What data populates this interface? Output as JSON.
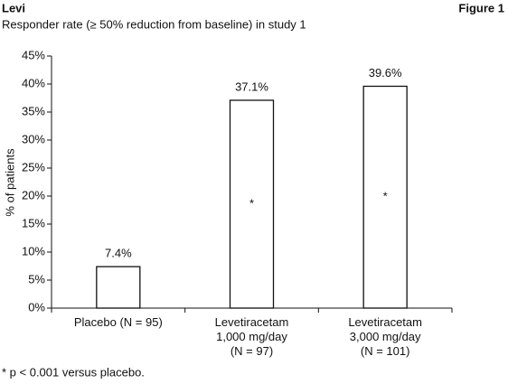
{
  "header": {
    "left": "Levi",
    "right": "Figure 1"
  },
  "chart_data": {
    "type": "bar",
    "title": "Responder rate (≥ 50% reduction from baseline) in study 1",
    "y_label": "% of patients",
    "categories": [
      [
        "Placebo (N = 95)"
      ],
      [
        "Levetiracetam",
        "1,000 mg/day",
        "(N = 97)"
      ],
      [
        "Levetiracetam",
        "3,000 mg/day",
        "(N = 101)"
      ]
    ],
    "values": [
      7.4,
      37.1,
      39.6
    ],
    "value_labels": [
      "7.4%",
      "37.1%",
      "39.6%"
    ],
    "significance_marks": [
      null,
      "*",
      "*"
    ],
    "color": "#ffffff",
    "ylim": [
      0,
      45
    ],
    "yticks": [
      {
        "value": 0,
        "label": "0%"
      },
      {
        "value": 5,
        "label": "5%"
      },
      {
        "value": 10,
        "label": "10%"
      },
      {
        "value": 15,
        "label": "15%"
      },
      {
        "value": 20,
        "label": "20%"
      },
      {
        "value": 25,
        "label": "25%"
      },
      {
        "value": 30,
        "label": "30%"
      },
      {
        "value": 35,
        "label": "35%"
      },
      {
        "value": 40,
        "label": "40%"
      },
      {
        "value": 45,
        "label": "45%"
      }
    ],
    "grid": false,
    "footnote": "* p < 0.001 versus placebo."
  }
}
